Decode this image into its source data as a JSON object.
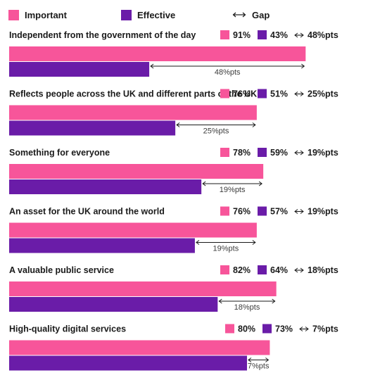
{
  "legend": {
    "important": "Important",
    "effective": "Effective",
    "gap": "Gap"
  },
  "colors": {
    "important": "#f7559a",
    "effective": "#6a1ca8",
    "text": "#1a1a1a"
  },
  "chart_data": {
    "type": "bar",
    "orientation": "horizontal",
    "xlim": [
      0,
      100
    ],
    "categories": [
      "Independent from the government of the day",
      "Reflects people across the UK and different parts of the UK",
      "Something for everyone",
      "An asset for the UK around the world",
      "A valuable public service",
      "High-quality digital services"
    ],
    "series": [
      {
        "name": "Important",
        "values": [
          91,
          76,
          78,
          76,
          82,
          80
        ]
      },
      {
        "name": "Effective",
        "values": [
          43,
          51,
          59,
          57,
          64,
          73
        ]
      }
    ],
    "important_labels": [
      "91%",
      "76%",
      "78%",
      "76%",
      "82%",
      "80%"
    ],
    "effective_labels": [
      "43%",
      "51%",
      "59%",
      "57%",
      "64%",
      "73%"
    ],
    "gap_labels": [
      "48%pts",
      "25%pts",
      "19%pts",
      "19%pts",
      "18%pts",
      "7%pts"
    ],
    "gap_symbol": "⟷"
  }
}
